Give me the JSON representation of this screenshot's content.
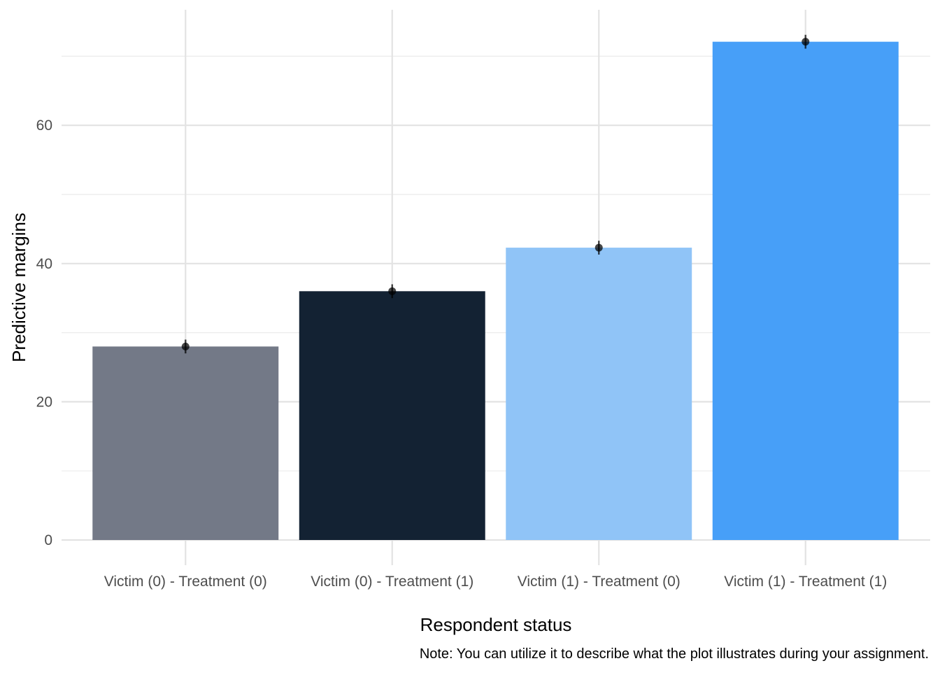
{
  "chart_data": {
    "type": "bar",
    "title": "",
    "xlabel": "Respondent status",
    "ylabel": "Predictive margins",
    "caption": "Note: You can utilize it to describe what the plot illustrates during your assignment.",
    "categories": [
      "Victim (0) - Treatment (0)",
      "Victim (0) - Treatment (1)",
      "Victim (1) - Treatment (0)",
      "Victim (1) - Treatment (1)"
    ],
    "values": [
      28.0,
      36.0,
      42.3,
      72.1
    ],
    "error_low": [
      27.0,
      35.0,
      41.3,
      71.1
    ],
    "error_high": [
      29.0,
      37.0,
      43.3,
      73.1
    ],
    "bar_colors": [
      "#737987",
      "#132233",
      "#90c4f7",
      "#479ff8"
    ],
    "ylim": [
      0,
      70
    ],
    "yticks": [
      0,
      20,
      40,
      60
    ],
    "grid": true,
    "legend": "none"
  }
}
